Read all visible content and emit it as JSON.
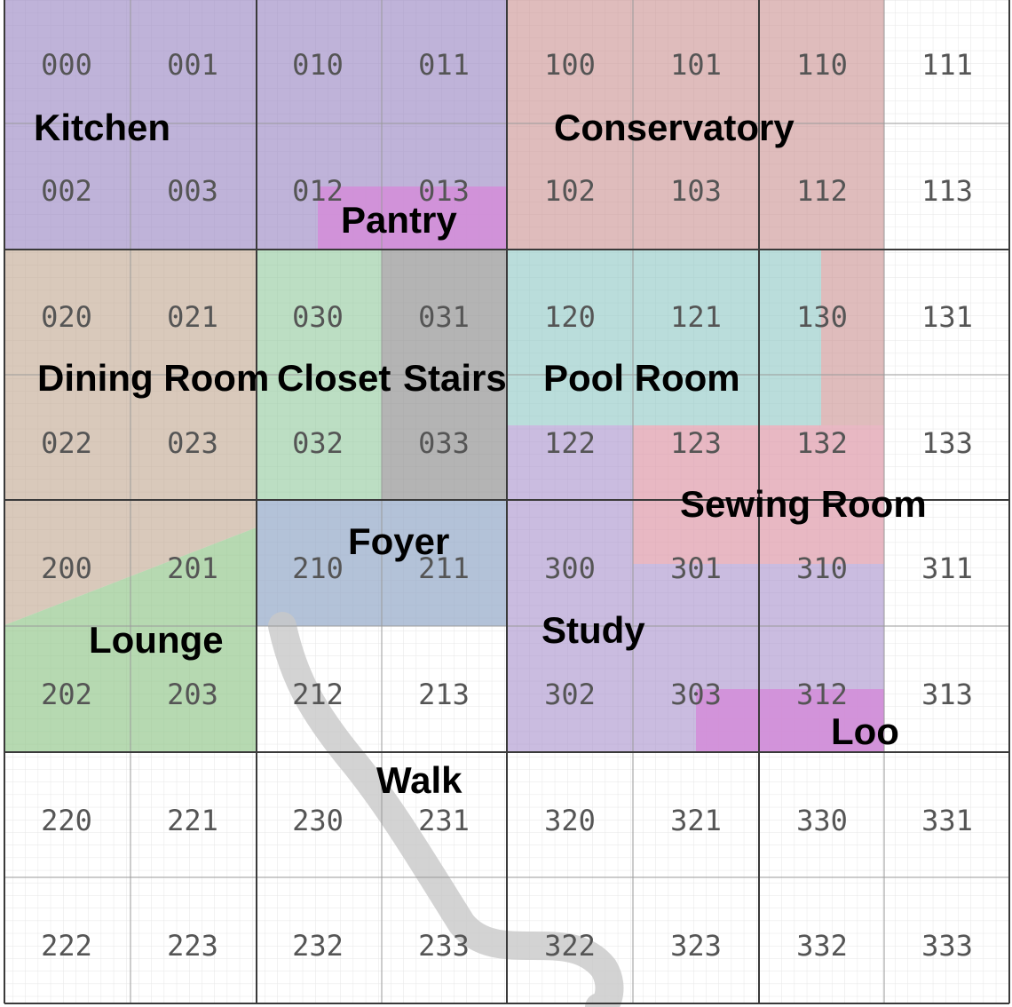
{
  "floorplan": {
    "grid_rows": [
      [
        "000",
        "001",
        "010",
        "011",
        "100",
        "101",
        "110",
        "111"
      ],
      [
        "002",
        "003",
        "012",
        "013",
        "102",
        "103",
        "112",
        "113"
      ],
      [
        "020",
        "021",
        "030",
        "031",
        "120",
        "121",
        "130",
        "131"
      ],
      [
        "022",
        "023",
        "032",
        "033",
        "122",
        "123",
        "132",
        "133"
      ],
      [
        "200",
        "201",
        "210",
        "211",
        "300",
        "301",
        "310",
        "311"
      ],
      [
        "202",
        "203",
        "212",
        "213",
        "302",
        "303",
        "312",
        "313"
      ],
      [
        "220",
        "221",
        "230",
        "231",
        "320",
        "321",
        "330",
        "331"
      ],
      [
        "222",
        "223",
        "232",
        "233",
        "322",
        "323",
        "332",
        "333"
      ]
    ],
    "rooms": [
      {
        "key": "kitchen",
        "label": "Kitchen",
        "color": "#9C8AC4"
      },
      {
        "key": "conservatory",
        "label": "Conservatory",
        "color": "#D4A3A3"
      },
      {
        "key": "pantry",
        "label": "Pantry",
        "color": "#D79CDB"
      },
      {
        "key": "dining-room",
        "label": "Dining Room",
        "color": "#CBB39E"
      },
      {
        "key": "closet",
        "label": "Closet",
        "color": "#A9D5B2"
      },
      {
        "key": "stairs",
        "label": "Stairs",
        "color": "#A8A8A8"
      },
      {
        "key": "pool-room",
        "label": "Pool Room",
        "color": "#A5D1CE"
      },
      {
        "key": "sewing-room",
        "label": "Sewing Room",
        "color": "#E2A5B4"
      },
      {
        "key": "foyer",
        "label": "Foyer",
        "color": "#A9BAD3"
      },
      {
        "key": "lounge",
        "label": "Lounge",
        "color": "#A4D09B"
      },
      {
        "key": "study",
        "label": "Study",
        "color": "#B9A4D6"
      },
      {
        "key": "loo",
        "label": "Loo",
        "color": "#D79CDB"
      },
      {
        "key": "walk",
        "label": "Walk",
        "color": "#BDBDBD"
      }
    ]
  }
}
